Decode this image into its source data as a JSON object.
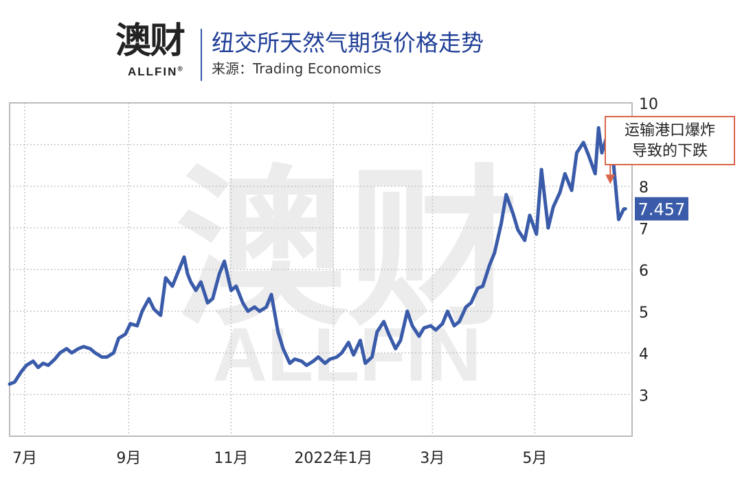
{
  "header": {
    "logo_cn": "澳财",
    "logo_en": "ALLFIN",
    "logo_reg": "®",
    "title": "纽交所天然气期货价格走势",
    "source": "来源：Trading Economics"
  },
  "watermark": {
    "cn": "澳财",
    "en": "ALLFIN"
  },
  "colors": {
    "line": "#3a5ba9",
    "annotation_border": "#d9654a",
    "title": "#1f3e96",
    "last_value_bg": "#3a5ba9"
  },
  "chart_data": {
    "type": "line",
    "title": "纽交所天然气期货价格走势",
    "xlabel": "",
    "ylabel": "",
    "ylim": [
      2,
      10
    ],
    "yticks": [
      3,
      4,
      5,
      6,
      7,
      8,
      10
    ],
    "xticks": [
      "7月",
      "9月",
      "11月",
      "2022年1月",
      "3月",
      "5月"
    ],
    "xticks_dates": [
      "2021-07-01",
      "2021-09-01",
      "2021-11-01",
      "2022-01-01",
      "2022-03-01",
      "2022-05-01"
    ],
    "x_start": "2021-06-22",
    "x_end": "2022-06-28",
    "grid": true,
    "last_value": "7.457",
    "annotation": {
      "lines": [
        "运输港口爆炸",
        "导致的下跌"
      ],
      "date": "2022-06-15",
      "value": 8.05
    },
    "series": [
      {
        "name": "",
        "x": [
          "2021-06-22",
          "2021-06-25",
          "2021-06-29",
          "2021-07-02",
          "2021-07-06",
          "2021-07-09",
          "2021-07-12",
          "2021-07-15",
          "2021-07-19",
          "2021-07-22",
          "2021-07-26",
          "2021-07-29",
          "2021-08-02",
          "2021-08-05",
          "2021-08-09",
          "2021-08-12",
          "2021-08-16",
          "2021-08-19",
          "2021-08-23",
          "2021-08-26",
          "2021-08-30",
          "2021-09-02",
          "2021-09-06",
          "2021-09-09",
          "2021-09-13",
          "2021-09-16",
          "2021-09-20",
          "2021-09-23",
          "2021-09-27",
          "2021-09-30",
          "2021-10-04",
          "2021-10-06",
          "2021-10-08",
          "2021-10-11",
          "2021-10-14",
          "2021-10-18",
          "2021-10-21",
          "2021-10-25",
          "2021-10-28",
          "2021-11-01",
          "2021-11-04",
          "2021-11-08",
          "2021-11-11",
          "2021-11-15",
          "2021-11-18",
          "2021-11-22",
          "2021-11-25",
          "2021-11-29",
          "2021-12-02",
          "2021-12-06",
          "2021-12-09",
          "2021-12-13",
          "2021-12-16",
          "2021-12-20",
          "2021-12-23",
          "2021-12-27",
          "2021-12-30",
          "2022-01-03",
          "2022-01-06",
          "2022-01-10",
          "2022-01-13",
          "2022-01-17",
          "2022-01-20",
          "2022-01-24",
          "2022-01-27",
          "2022-01-31",
          "2022-02-03",
          "2022-02-07",
          "2022-02-10",
          "2022-02-14",
          "2022-02-17",
          "2022-02-21",
          "2022-02-24",
          "2022-02-28",
          "2022-03-03",
          "2022-03-07",
          "2022-03-10",
          "2022-03-14",
          "2022-03-17",
          "2022-03-21",
          "2022-03-24",
          "2022-03-28",
          "2022-03-31",
          "2022-04-04",
          "2022-04-07",
          "2022-04-11",
          "2022-04-14",
          "2022-04-18",
          "2022-04-21",
          "2022-04-25",
          "2022-04-28",
          "2022-05-02",
          "2022-05-05",
          "2022-05-09",
          "2022-05-12",
          "2022-05-16",
          "2022-05-19",
          "2022-05-23",
          "2022-05-26",
          "2022-05-30",
          "2022-06-02",
          "2022-06-06",
          "2022-06-08",
          "2022-06-10",
          "2022-06-13",
          "2022-06-16",
          "2022-06-20",
          "2022-06-23",
          "2022-06-24"
        ],
        "values": [
          3.25,
          3.3,
          3.55,
          3.7,
          3.8,
          3.65,
          3.75,
          3.7,
          3.85,
          4.0,
          4.1,
          4.0,
          4.1,
          4.15,
          4.1,
          4.0,
          3.9,
          3.9,
          4.0,
          4.35,
          4.45,
          4.7,
          4.65,
          5.0,
          5.3,
          5.05,
          4.9,
          5.8,
          5.6,
          5.9,
          6.3,
          5.9,
          5.7,
          5.5,
          5.7,
          5.2,
          5.3,
          5.9,
          6.2,
          5.5,
          5.6,
          5.2,
          5.0,
          5.1,
          5.0,
          5.1,
          5.4,
          4.5,
          4.1,
          3.75,
          3.85,
          3.8,
          3.7,
          3.8,
          3.9,
          3.75,
          3.85,
          3.9,
          4.0,
          4.25,
          3.95,
          4.3,
          3.75,
          3.9,
          4.5,
          4.75,
          4.45,
          4.1,
          4.3,
          5.0,
          4.65,
          4.4,
          4.6,
          4.65,
          4.55,
          4.7,
          5.0,
          4.65,
          4.75,
          5.1,
          5.2,
          5.55,
          5.6,
          6.1,
          6.4,
          7.1,
          7.8,
          7.35,
          6.95,
          6.7,
          7.3,
          6.85,
          8.4,
          7.0,
          7.5,
          7.85,
          8.3,
          7.9,
          8.8,
          9.05,
          8.75,
          8.3,
          9.4,
          8.8,
          9.2,
          8.95,
          7.2,
          7.45,
          7.457
        ]
      }
    ]
  }
}
